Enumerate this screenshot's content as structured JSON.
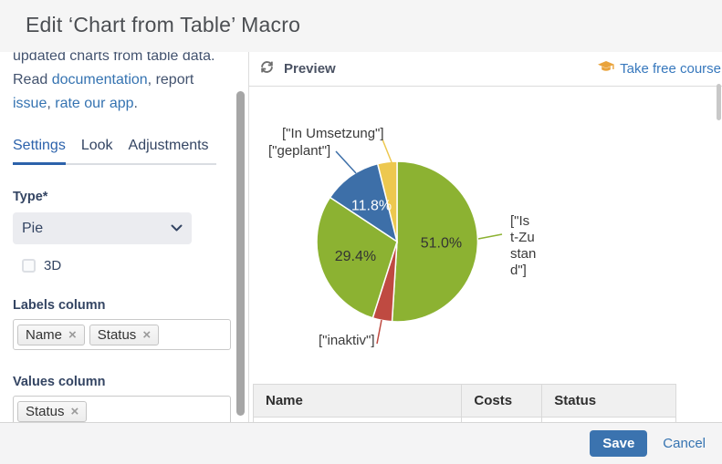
{
  "dialog": {
    "title": "Edit ‘Chart from Table’ Macro"
  },
  "sidebar": {
    "intro": {
      "clipped_line": "updated charts from table data.",
      "read": "Read ",
      "link_documentation": "documentation",
      "sep1": ", report ",
      "link_issue": "issue",
      "sep2": ", ",
      "link_rate": "rate our app",
      "end": "."
    },
    "tabs": [
      {
        "label": "Settings",
        "active": true
      },
      {
        "label": "Look",
        "active": false
      },
      {
        "label": "Adjustments",
        "active": false
      }
    ],
    "form": {
      "type_label": "Type*",
      "type_value": "Pie",
      "checkbox_3d_label": "3D",
      "checkbox_3d_checked": false,
      "labels_column_label": "Labels column",
      "labels_tags": [
        "Name",
        "Status"
      ],
      "values_column_label": "Values column",
      "values_tags": [
        "Status"
      ],
      "tag_remove_glyph": "×"
    }
  },
  "preview": {
    "title": "Preview",
    "course_link": "Take free course"
  },
  "chart_data": {
    "type": "pie",
    "title": "",
    "start_angle": "12-o-clock, clockwise",
    "slices": [
      {
        "name": "[\"Ist-Zustand\"]",
        "pct": 51.0,
        "color": "#8cb232",
        "pct_label": "51.0%",
        "pct_label_color": "#333333"
      },
      {
        "name": "[\"inaktiv\"]",
        "pct": 3.9,
        "color": "#bf4a41",
        "pct_label": ""
      },
      {
        "name": "",
        "pct": 29.4,
        "color": "#8cb232",
        "pct_label": "29.4%",
        "pct_label_color": "#333333"
      },
      {
        "name": "[\"geplant\"]",
        "pct": 11.8,
        "color": "#3d6fa8",
        "pct_label": "11.8%",
        "pct_label_color": "#ffffff"
      },
      {
        "name": "[\"In Umsetzung\"]",
        "pct": 3.9,
        "color": "#edc84f",
        "pct_label": ""
      }
    ],
    "legend": "none",
    "label_style": "external labels with colored leader lines; percentages inside slices"
  },
  "table": {
    "headers": [
      "Name",
      "Costs",
      "Status"
    ]
  },
  "footer": {
    "save_label": "Save",
    "cancel_label": "Cancel"
  },
  "colors": {
    "accent_blue": "#3b73af",
    "link_blue": "#3573b1",
    "course_icon_orange": "#e9a33c",
    "titlebar_bg": "#f5f5f5",
    "footer_bg": "#f4f4f5"
  }
}
